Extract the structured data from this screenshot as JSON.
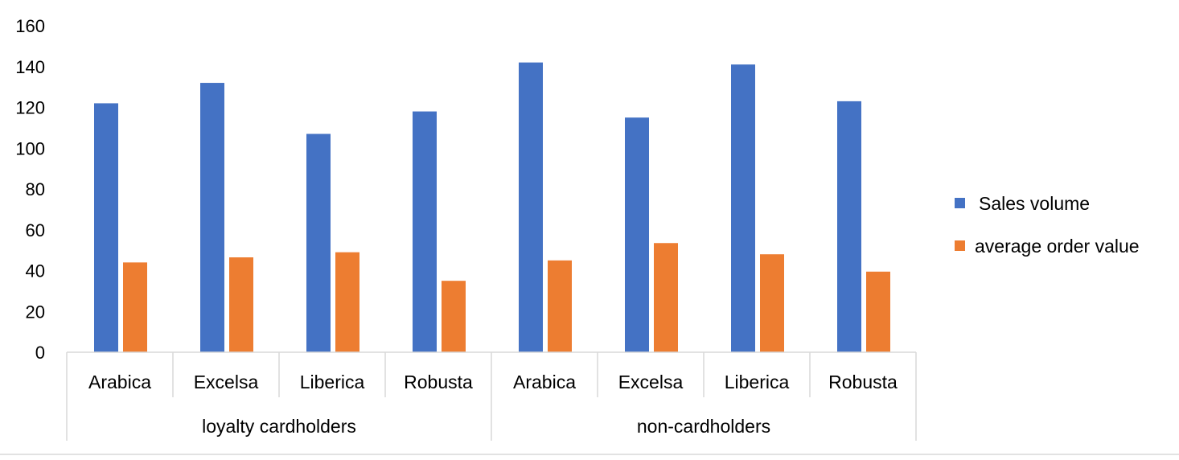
{
  "chart_data": {
    "type": "bar",
    "title": "",
    "xlabel": "",
    "ylabel": "",
    "ylim": [
      0,
      160
    ],
    "y_ticks": [
      0,
      20,
      40,
      60,
      80,
      100,
      120,
      140,
      160
    ],
    "grid": false,
    "legend_position": "right",
    "groups": [
      {
        "label": "loyalty cardholders",
        "categories": [
          "Arabica",
          "Excelsa",
          "Liberica",
          "Robusta"
        ]
      },
      {
        "label": "non-cardholders",
        "categories": [
          "Arabica",
          "Excelsa",
          "Liberica",
          "Robusta"
        ]
      }
    ],
    "series": [
      {
        "name": "Sales volume",
        "color": "#4472c4",
        "values": [
          122,
          132,
          107,
          118,
          142,
          115,
          141,
          123
        ]
      },
      {
        "name": "average order value",
        "color": "#ed7d31",
        "values": [
          44,
          46.5,
          49,
          35,
          45,
          53.5,
          48,
          39.5
        ]
      }
    ]
  }
}
